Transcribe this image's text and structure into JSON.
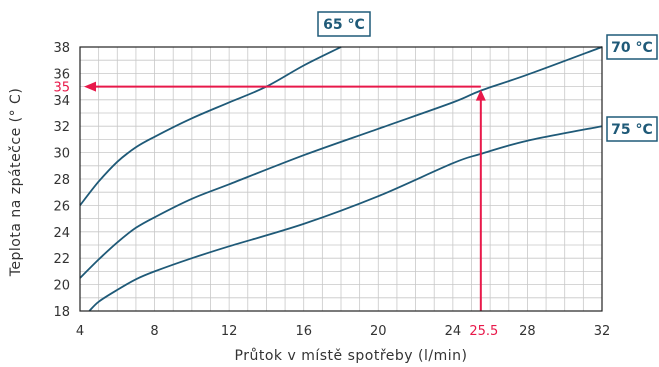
{
  "colors": {
    "curve": "#1f5a78",
    "grid": "#c8c8c8",
    "frame": "#222222",
    "highlight": "#e8194a",
    "text": "#333333"
  },
  "chart_data": {
    "type": "line",
    "xlabel": "Průtok v místě spotřeby (l/min)",
    "ylabel": "Teplota na zpátečce (° C)",
    "xlim": [
      4,
      32
    ],
    "ylim": [
      18,
      38
    ],
    "x_ticks": [
      4,
      8,
      12,
      16,
      20,
      24,
      28,
      32
    ],
    "y_ticks": [
      18,
      20,
      22,
      24,
      26,
      28,
      30,
      32,
      34,
      36,
      38
    ],
    "grid": true,
    "series": [
      {
        "name": "65 °C",
        "x": [
          4,
          5,
          6,
          7,
          8,
          10,
          12,
          14,
          16,
          18
        ],
        "y": [
          26,
          27.8,
          29.3,
          30.4,
          31.2,
          32.6,
          33.8,
          35,
          36.6,
          38
        ]
      },
      {
        "name": "70 °C",
        "x": [
          4,
          5,
          6,
          7,
          8,
          10,
          12,
          16,
          20,
          24,
          25.5,
          28,
          32
        ],
        "y": [
          20.5,
          21.9,
          23.2,
          24.3,
          25.1,
          26.5,
          27.6,
          29.8,
          31.8,
          33.8,
          34.7,
          35.9,
          38
        ]
      },
      {
        "name": "75 °C",
        "x": [
          4.5,
          5,
          6,
          7,
          8,
          10,
          12,
          16,
          20,
          24,
          25.5,
          28,
          32
        ],
        "y": [
          18,
          18.7,
          19.6,
          20.4,
          21,
          22,
          22.9,
          24.6,
          26.7,
          29.2,
          29.9,
          30.9,
          32
        ]
      }
    ],
    "annotation": {
      "x_value": 25.5,
      "y_value": 35,
      "x_label": "25.5",
      "y_label": "35"
    }
  }
}
